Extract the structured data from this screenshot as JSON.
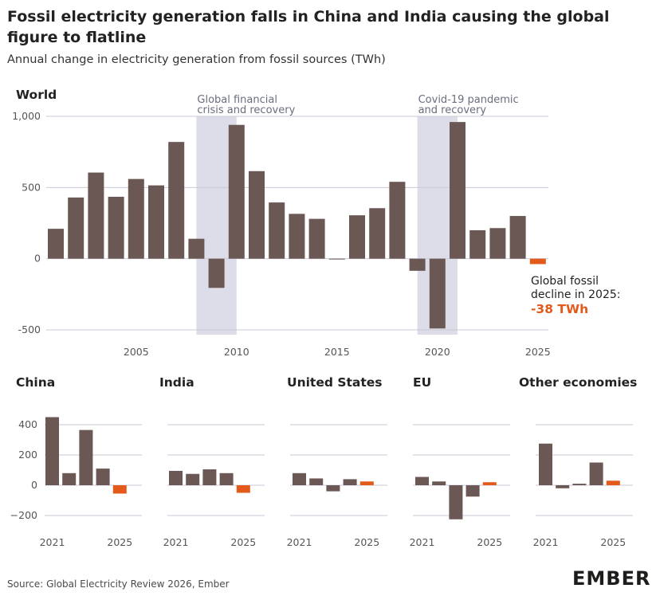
{
  "title": "Fossil electricity generation falls in China and India causing the global figure to flatline",
  "subtitle": "Annual change in electricity generation from fossil sources (TWh)",
  "source": "Source: Global Electricity Review 2026, Ember",
  "logo": "EMBER",
  "colors": {
    "bar": "#6b5854",
    "highlight": "#e35a1a",
    "shade": "#dcdde8",
    "grid": "#c9c9d6",
    "axis_text": "#555555"
  },
  "chart_data": [
    {
      "type": "bar",
      "title": "World",
      "x": [
        2001,
        2002,
        2003,
        2004,
        2005,
        2006,
        2007,
        2008,
        2009,
        2010,
        2011,
        2012,
        2013,
        2014,
        2015,
        2016,
        2017,
        2018,
        2019,
        2020,
        2021,
        2022,
        2023,
        2024,
        2025
      ],
      "values": [
        210,
        430,
        605,
        435,
        560,
        515,
        820,
        140,
        -205,
        940,
        615,
        395,
        315,
        280,
        -5,
        305,
        355,
        540,
        -85,
        -490,
        960,
        200,
        215,
        300,
        -38
      ],
      "highlight_last": true,
      "ylim": [
        -500,
        1000
      ],
      "yticks": [
        -500,
        0,
        500,
        1000
      ],
      "ytick_labels": [
        "-500",
        "0",
        "500",
        "1,000"
      ],
      "xticks": [
        2005,
        2010,
        2015,
        2020,
        2025
      ],
      "xtick_labels": [
        "2005",
        "2010",
        "2015",
        "2020",
        "2025"
      ],
      "shaded_ranges": [
        {
          "from": 2008.5,
          "to": 2010.5,
          "label_line1": "Global financial",
          "label_line2": "crisis and recovery"
        },
        {
          "from": 2019.5,
          "to": 2021.5,
          "label_line1": "Covid-19 pandemic",
          "label_line2": "and recovery"
        }
      ],
      "callout": {
        "line1": "Global fossil",
        "line2": "decline in 2025:",
        "value": "-38 TWh"
      }
    },
    {
      "type": "bar",
      "title": "China",
      "x": [
        2021,
        2022,
        2023,
        2024,
        2025
      ],
      "values": [
        450,
        80,
        365,
        110,
        -55
      ],
      "ylim": [
        -200,
        400
      ],
      "yticks": [
        -200,
        0,
        200,
        400
      ],
      "ytick_labels": [
        "−200",
        "0",
        "200",
        "400"
      ],
      "xtick_labels": [
        "2021",
        "2025"
      ],
      "highlight_last": true
    },
    {
      "type": "bar",
      "title": "India",
      "x": [
        2021,
        2022,
        2023,
        2024,
        2025
      ],
      "values": [
        95,
        75,
        105,
        80,
        -50
      ],
      "ylim": [
        -200,
        400
      ],
      "xtick_labels": [
        "2021",
        "2025"
      ],
      "highlight_last": true
    },
    {
      "type": "bar",
      "title": "United States",
      "x": [
        2021,
        2022,
        2023,
        2024,
        2025
      ],
      "values": [
        80,
        45,
        -40,
        40,
        25
      ],
      "ylim": [
        -200,
        400
      ],
      "xtick_labels": [
        "2021",
        "2025"
      ],
      "highlight_last": true
    },
    {
      "type": "bar",
      "title": "EU",
      "x": [
        2021,
        2022,
        2023,
        2024,
        2025
      ],
      "values": [
        55,
        25,
        -225,
        -75,
        20
      ],
      "ylim": [
        -200,
        400
      ],
      "xtick_labels": [
        "2021",
        "2025"
      ],
      "highlight_last": true
    },
    {
      "type": "bar",
      "title": "Other economies",
      "x": [
        2021,
        2022,
        2023,
        2024,
        2025
      ],
      "values": [
        275,
        -20,
        10,
        150,
        30
      ],
      "ylim": [
        -200,
        400
      ],
      "xtick_labels": [
        "2021",
        "2025"
      ],
      "highlight_last": true
    }
  ]
}
